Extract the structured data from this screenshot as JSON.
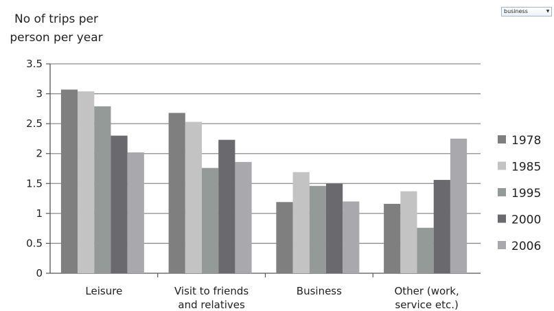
{
  "dropdown": {
    "selected": "business"
  },
  "chart_data": {
    "type": "bar",
    "ylabel_lines": [
      "No of trips per",
      "person per year"
    ],
    "categories": [
      [
        "Leisure"
      ],
      [
        "Visit to friends",
        "and relatives"
      ],
      [
        "Business"
      ],
      [
        "Other (work,",
        "service etc.)"
      ]
    ],
    "series": [
      {
        "name": "1978",
        "color": "#7f7f7f",
        "values": [
          3.07,
          2.68,
          1.19,
          1.16
        ]
      },
      {
        "name": "1985",
        "color": "#c3c3c3",
        "values": [
          3.04,
          2.53,
          1.69,
          1.37
        ]
      },
      {
        "name": "1995",
        "color": "#939a98",
        "values": [
          2.79,
          1.76,
          1.46,
          0.76
        ]
      },
      {
        "name": "2000",
        "color": "#6a6a6e",
        "values": [
          2.3,
          2.23,
          1.5,
          1.56
        ]
      },
      {
        "name": "2006",
        "color": "#a9a8ad",
        "values": [
          2.02,
          1.86,
          1.2,
          2.25
        ]
      }
    ],
    "yticks": [
      "0",
      "0.5",
      "1",
      "1.5",
      "2",
      "2.5",
      "3",
      "3.5"
    ],
    "ylim": [
      0,
      3.5
    ],
    "grid": true,
    "legend_position": "right"
  }
}
